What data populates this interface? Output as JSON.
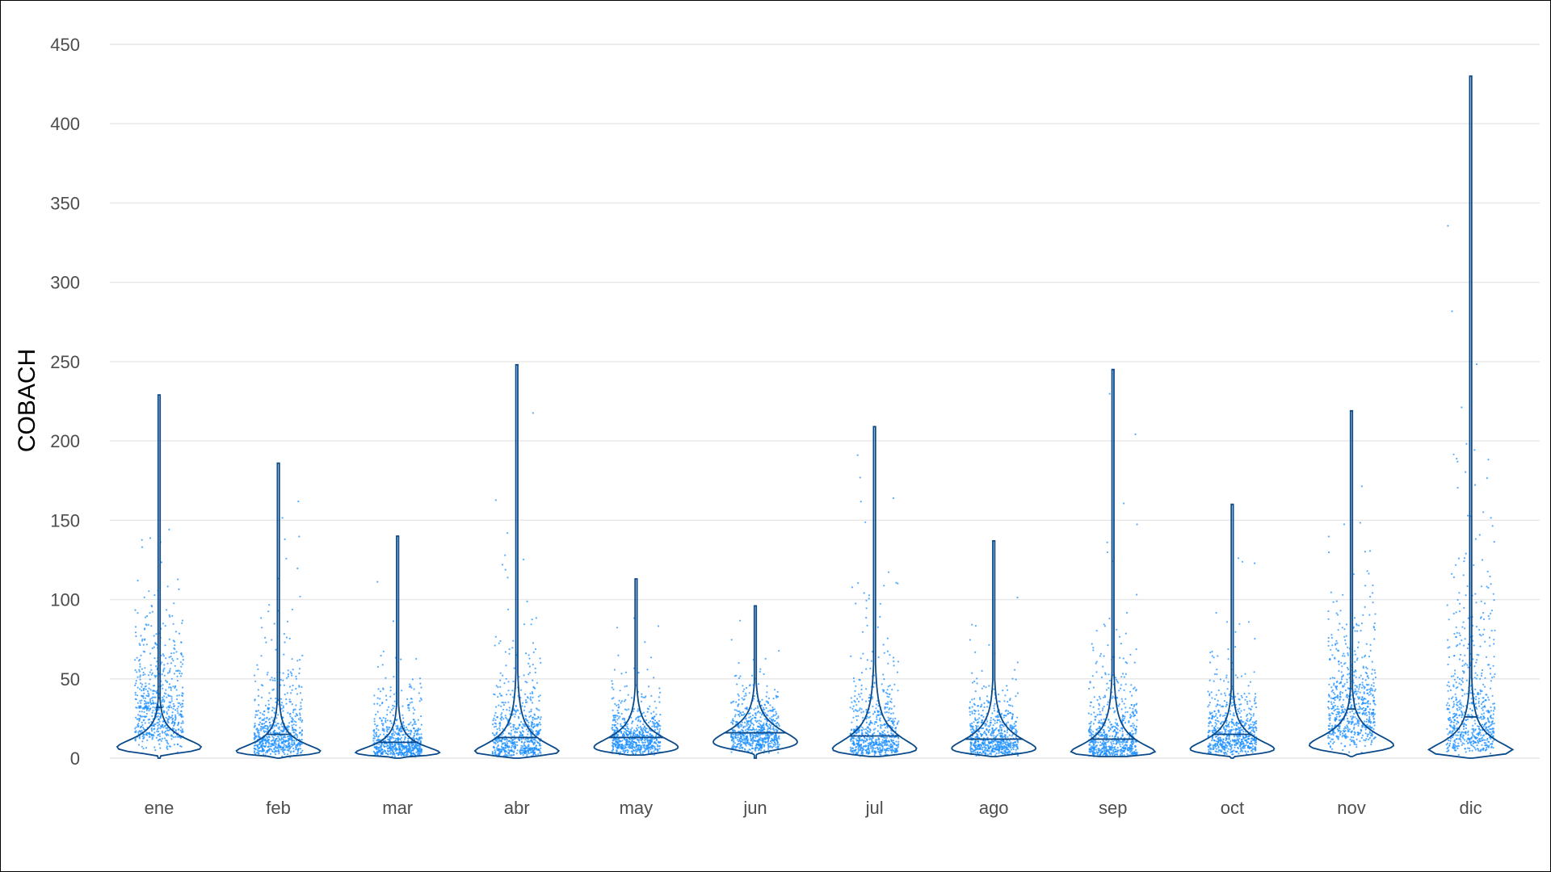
{
  "chart_data": {
    "type": "violin",
    "title": "",
    "xlabel": "",
    "ylabel": "COBACH",
    "ylim": [
      0,
      450
    ],
    "y_ticks": [
      0,
      50,
      100,
      150,
      200,
      250,
      300,
      350,
      400,
      450
    ],
    "grid": "horizontal",
    "legend": "none",
    "categories": [
      "ene",
      "feb",
      "mar",
      "abr",
      "may",
      "jun",
      "jul",
      "ago",
      "sep",
      "oct",
      "nov",
      "dic"
    ],
    "series": [
      {
        "category": "ene",
        "min": 0,
        "median": 32,
        "max": 229,
        "mode": 10
      },
      {
        "category": "feb",
        "min": 0,
        "median": 15,
        "max": 186,
        "mode": 8
      },
      {
        "category": "mar",
        "min": 0,
        "median": 10,
        "max": 140,
        "mode": 7
      },
      {
        "category": "abr",
        "min": 0,
        "median": 13,
        "max": 248,
        "mode": 10
      },
      {
        "category": "may",
        "min": 2,
        "median": 13,
        "max": 113,
        "mode": 11
      },
      {
        "category": "jun",
        "min": 0,
        "median": 16,
        "max": 96,
        "mode": 14
      },
      {
        "category": "jul",
        "min": 1,
        "median": 14,
        "max": 209,
        "mode": 12
      },
      {
        "category": "ago",
        "min": 1,
        "median": 12,
        "max": 137,
        "mode": 11
      },
      {
        "category": "sep",
        "min": 1,
        "median": 12,
        "max": 245,
        "mode": 10
      },
      {
        "category": "oct",
        "min": 0,
        "median": 15,
        "max": 160,
        "mode": 10
      },
      {
        "category": "nov",
        "min": 1,
        "median": 31,
        "max": 219,
        "mode": 12
      },
      {
        "category": "dic",
        "min": 0,
        "median": 26,
        "max": 430,
        "mode": 10
      }
    ],
    "colors": {
      "points": "#1e90ff",
      "violin": "#0a4a8a",
      "grid": "#e6e6e6",
      "tick_text": "#4d4d4d"
    }
  }
}
